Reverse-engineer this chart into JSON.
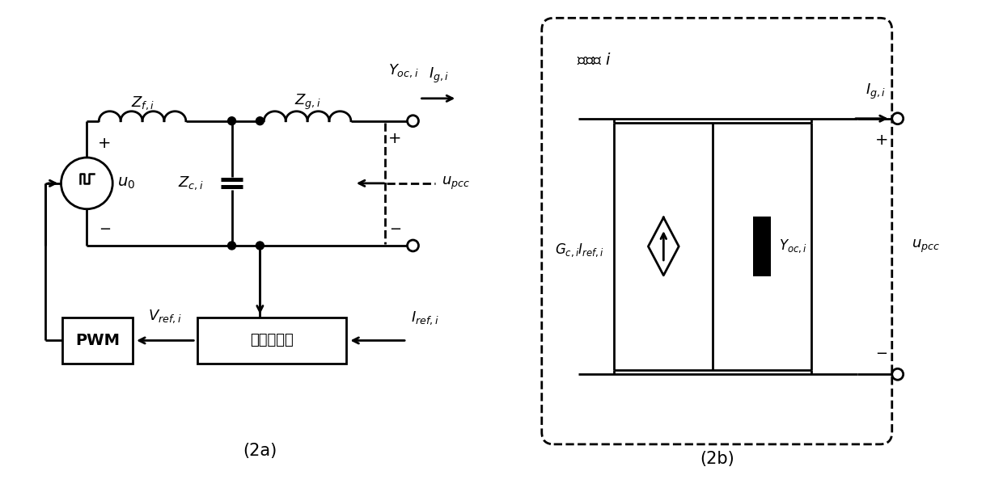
{
  "fig_width": 12.4,
  "fig_height": 6.04,
  "background_color": "#ffffff",
  "line_color": "#000000",
  "line_width": 2.0,
  "caption_2a": "(2a)",
  "caption_2b": "(2b)",
  "label_Zfi": "$Z_{f,i}$",
  "label_Zgi": "$Z_{g,i}$",
  "label_Zci": "$Z_{c,i}$",
  "label_u0": "$u_0$",
  "label_upcc_2a": "$u_{pcc}$",
  "label_upcc_2b": "$u_{pcc}$",
  "label_Yoci_top": "$Y_{oc,i}$",
  "label_Yoci_block": "$Y_{oc,i}$",
  "label_Igi_2a": "$I_{g,i}$",
  "label_Igi_2b": "$I_{g,i}$",
  "label_Vrefi": "$V_{ref,i}$",
  "label_Irefi": "$I_{ref,i}$",
  "label_GcIrefi": "$G_{c,i}I_{ref,i}$",
  "label_inverter_zh": "逆变器 $i$",
  "label_PWM": "PWM",
  "label_controller_zh": "电流控制器",
  "font_size": 13,
  "plus": "+",
  "minus": "$-$"
}
